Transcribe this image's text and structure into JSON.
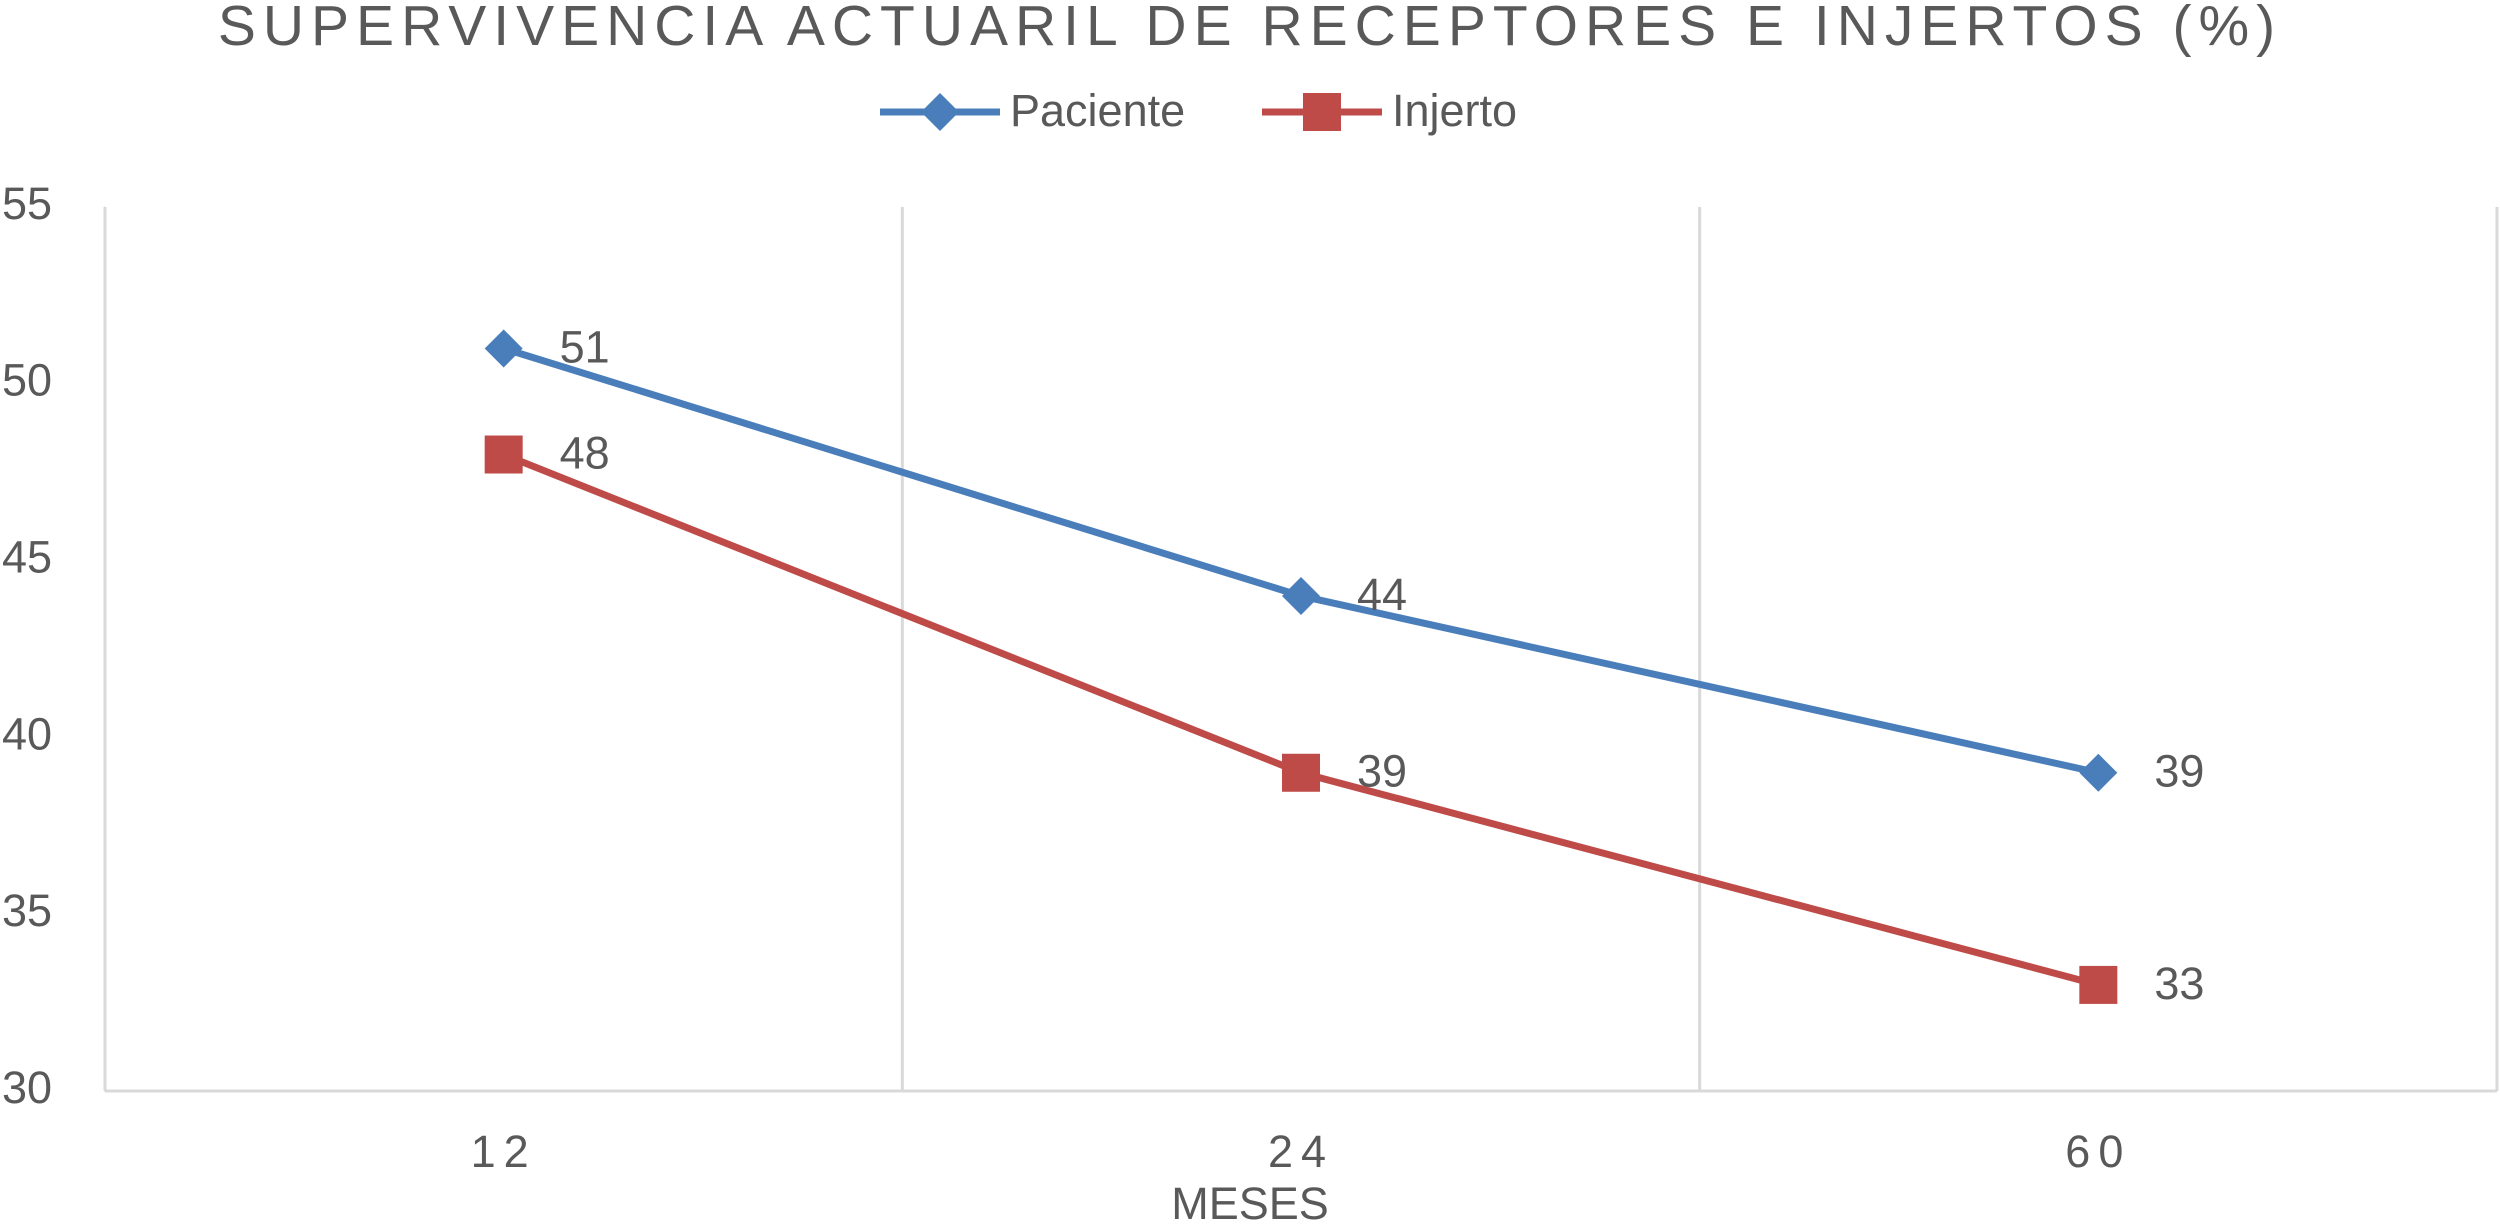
{
  "chart_data": {
    "type": "line",
    "title": "SUPERVIVENCIA ACTUARIL DE RECEPTORES E INJERTOS (%)",
    "x_label": "MESES",
    "categories": [
      "12",
      "24",
      "60"
    ],
    "series": [
      {
        "name": "Paciente",
        "color": "#4a7ebb",
        "marker": "diamond",
        "values": [
          51,
          44,
          39
        ]
      },
      {
        "name": "Injerto",
        "color": "#be4b48",
        "marker": "square",
        "values": [
          48,
          39,
          33
        ]
      }
    ],
    "ylim": [
      30,
      55
    ],
    "yticks": [
      30,
      35,
      40,
      45,
      50,
      55
    ],
    "grid": true,
    "legend": "top"
  }
}
